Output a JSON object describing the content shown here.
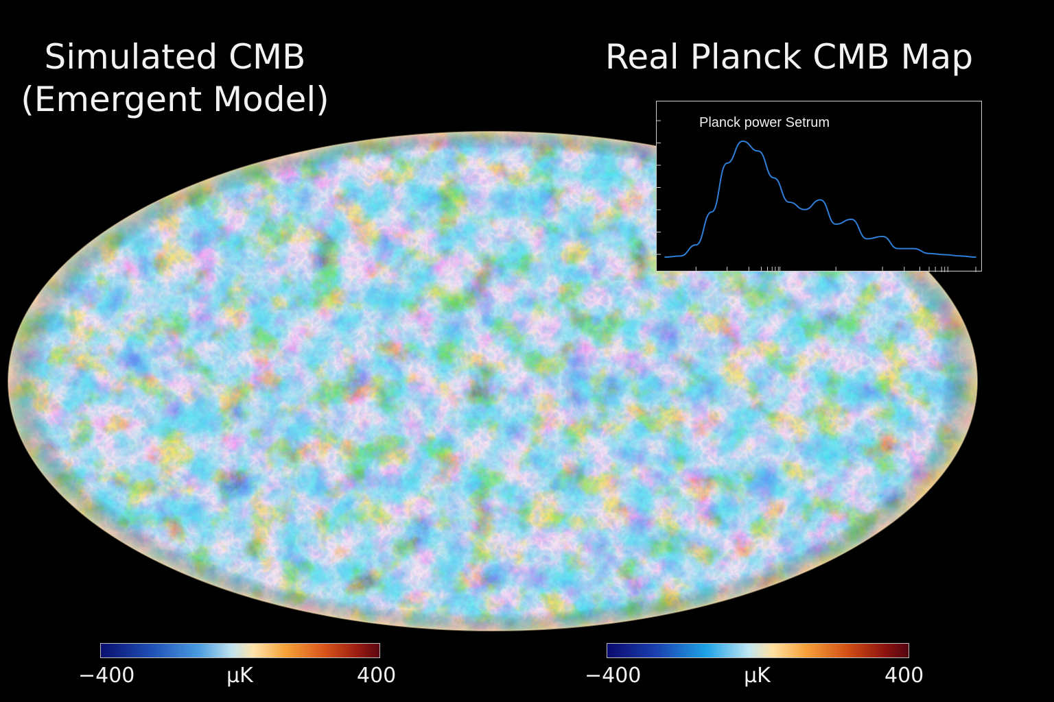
{
  "titles": {
    "left_line1": "Simulated CMB",
    "left_line2": "(Emergent Model)",
    "right": "Real Planck CMB Map"
  },
  "inset_plot": {
    "title": "Planck power Setrum",
    "line_color": "#2f7fd9",
    "frame_color": "#cfcfcf"
  },
  "colorbars": {
    "left": {
      "min_label": "−400",
      "unit_label": "μK",
      "max_label": "400"
    },
    "right": {
      "min_label": "−400",
      "unit_label": "μK",
      "max_label": "400"
    }
  },
  "map_colors": {
    "cold_deep": "#0b1f7a",
    "cold": "#1e5fc4",
    "cool": "#4a9be0",
    "neutral": "#9fd0e8",
    "warm_light": "#f0c060",
    "warm": "#f08a1e",
    "hot": "#c8560f"
  },
  "chart_data": {
    "type": "line",
    "title": "Planck power Setrum",
    "xlabel": "",
    "ylabel": "",
    "x": [
      0,
      0.05,
      0.1,
      0.15,
      0.2,
      0.25,
      0.3,
      0.35,
      0.4,
      0.45,
      0.5,
      0.55,
      0.6,
      0.65,
      0.7,
      0.75,
      0.8,
      0.85,
      0.9,
      0.95,
      1.0
    ],
    "series": [
      {
        "values": [
          0.05,
          0.06,
          0.15,
          0.42,
          0.82,
          1.0,
          0.92,
          0.7,
          0.5,
          0.44,
          0.52,
          0.32,
          0.36,
          0.2,
          0.22,
          0.12,
          0.12,
          0.08,
          0.07,
          0.06,
          0.05
        ]
      }
    ]
  }
}
